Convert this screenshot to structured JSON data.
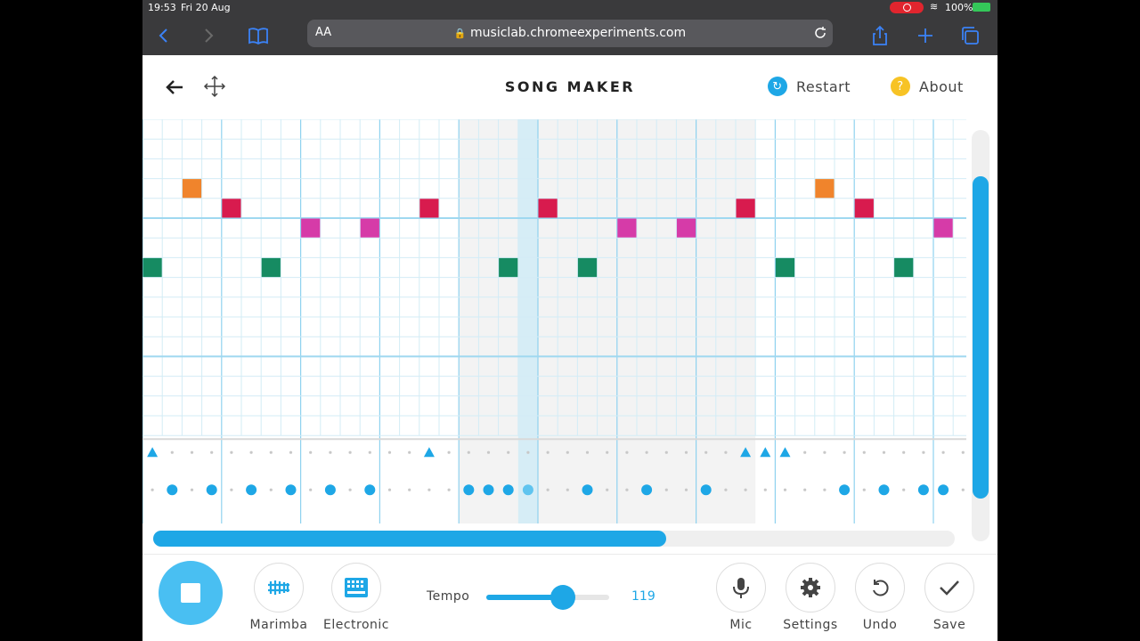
{
  "status_bar": {
    "time": "19:53",
    "date": "Fri 20 Aug",
    "battery": "100%"
  },
  "browser": {
    "text_size": "AA",
    "url": "musiclab.chromeexperiments.com"
  },
  "header": {
    "title": "SONG MAKER",
    "restart_label": "Restart",
    "about_label": "About"
  },
  "instruments": {
    "melody_label": "Marimba",
    "rhythm_label": "Electronic"
  },
  "tempo": {
    "label": "Tempo",
    "value": "119",
    "level": 0.62
  },
  "tools": {
    "mic_label": "Mic",
    "settings_label": "Settings",
    "undo_label": "Undo",
    "save_label": "Save"
  },
  "scroll": {
    "horizontal_position": 0.64
  },
  "colors": {
    "accent": "#1ea7e6",
    "note_orange": "#f0842c",
    "note_red": "#d81b4e",
    "note_magenta": "#d63ba8",
    "note_green": "#168b62"
  },
  "sequencer": {
    "columns": 42,
    "rows": 16,
    "playhead_column": 19,
    "shaded_columns": [
      16,
      31
    ],
    "notes": [
      {
        "col": 2,
        "row": 3,
        "color": "orange"
      },
      {
        "col": 4,
        "row": 4,
        "color": "red"
      },
      {
        "col": 8,
        "row": 5,
        "color": "magenta"
      },
      {
        "col": 11,
        "row": 5,
        "color": "magenta"
      },
      {
        "col": 14,
        "row": 4,
        "color": "red"
      },
      {
        "col": 20,
        "row": 4,
        "color": "red"
      },
      {
        "col": 24,
        "row": 5,
        "color": "magenta"
      },
      {
        "col": 27,
        "row": 5,
        "color": "magenta"
      },
      {
        "col": 30,
        "row": 4,
        "color": "red"
      },
      {
        "col": 34,
        "row": 3,
        "color": "orange"
      },
      {
        "col": 36,
        "row": 4,
        "color": "red"
      },
      {
        "col": 40,
        "row": 5,
        "color": "magenta"
      },
      {
        "col": 0,
        "row": 7,
        "color": "green"
      },
      {
        "col": 6,
        "row": 7,
        "color": "green"
      },
      {
        "col": 18,
        "row": 7,
        "color": "green"
      },
      {
        "col": 22,
        "row": 7,
        "color": "green"
      },
      {
        "col": 32,
        "row": 7,
        "color": "green"
      },
      {
        "col": 38,
        "row": 7,
        "color": "green"
      }
    ],
    "triangles": [
      0,
      14,
      30,
      31,
      32
    ],
    "circles": [
      1,
      3,
      5,
      7,
      9,
      11,
      16,
      17,
      18,
      19,
      22,
      25,
      28,
      35,
      37,
      39,
      40
    ]
  }
}
